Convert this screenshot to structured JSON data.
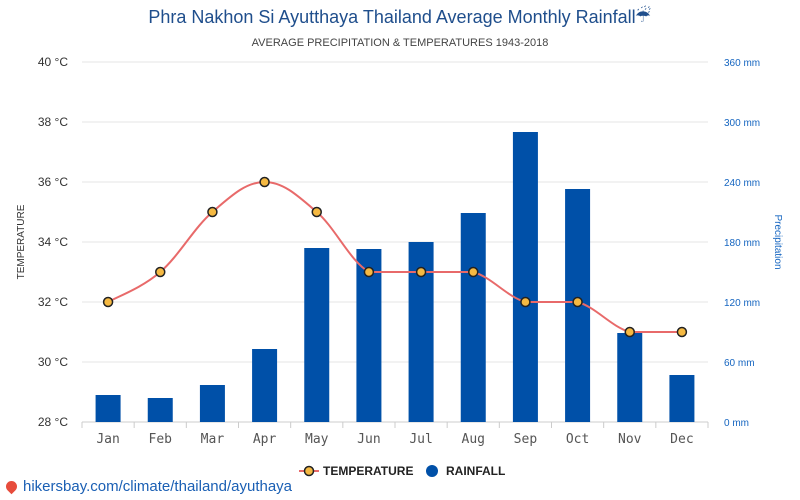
{
  "chart_data": {
    "type": "bar+line",
    "title": "Phra Nakhon Si Ayutthaya Thailand Average Monthly Rainfall",
    "title_icon": "umbrella-rain-icon",
    "subtitle": "AVERAGE PRECIPITATION & TEMPERATURES 1943-2018",
    "categories": [
      "Jan",
      "Feb",
      "Mar",
      "Apr",
      "May",
      "Jun",
      "Jul",
      "Aug",
      "Sep",
      "Oct",
      "Nov",
      "Dec"
    ],
    "series": [
      {
        "name": "TEMPERATURE",
        "kind": "line",
        "axis": "left",
        "color": "#e86a6a",
        "marker_color": "#f5b942",
        "values": [
          32,
          33,
          35,
          36,
          35,
          33,
          33,
          33,
          32,
          32,
          31,
          31
        ]
      },
      {
        "name": "RAINFALL",
        "kind": "bar",
        "axis": "right",
        "color": "#0050a8",
        "values": [
          27,
          24,
          37,
          73,
          174,
          173,
          180,
          209,
          290,
          233,
          89,
          47
        ]
      }
    ],
    "yleft": {
      "label": "TEMPERATURE",
      "ylim": [
        28,
        40
      ],
      "ticks": [
        28,
        30,
        32,
        34,
        36,
        38,
        40
      ],
      "tick_labels": [
        "28 °C",
        "30 °C",
        "32 °C",
        "34 °C",
        "36 °C",
        "38 °C",
        "40 °C"
      ]
    },
    "yright": {
      "label": "Precipitation",
      "ylim": [
        0,
        360
      ],
      "ticks": [
        0,
        60,
        120,
        180,
        240,
        300,
        360
      ],
      "tick_labels": [
        "0 mm",
        "60 mm",
        "120 mm",
        "180 mm",
        "240 mm",
        "300 mm",
        "360 mm"
      ]
    },
    "grid": true,
    "legend_position": "bottom-center"
  },
  "footer": {
    "text": "hikersbay.com/climate/thailand/ayuthaya",
    "icon": "map-pin-icon"
  }
}
